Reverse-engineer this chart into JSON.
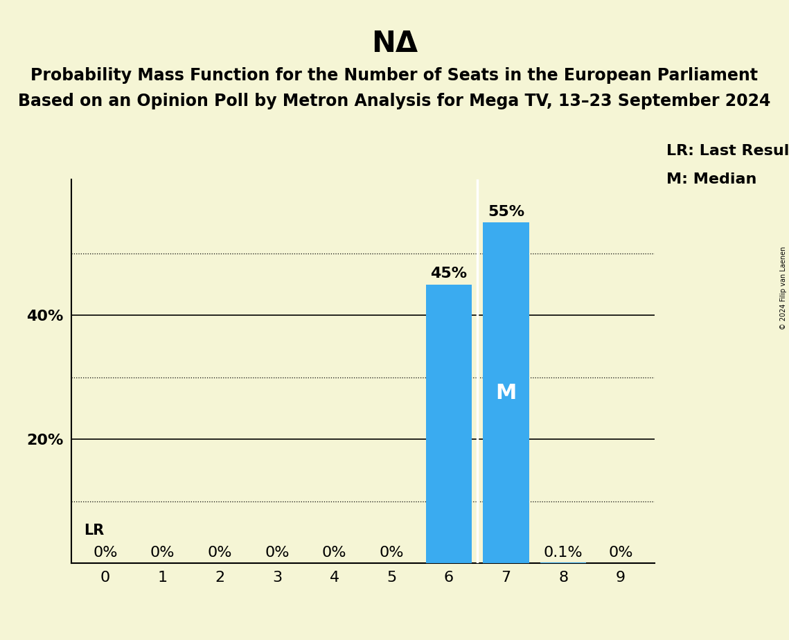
{
  "title": "NΔ",
  "subtitle1": "Probability Mass Function for the Number of Seats in the European Parliament",
  "subtitle2": "Based on an Opinion Poll by Metron Analysis for Mega TV, 13–23 September 2024",
  "copyright": "© 2024 Filip van Laenen",
  "categories": [
    0,
    1,
    2,
    3,
    4,
    5,
    6,
    7,
    8,
    9
  ],
  "values": [
    0.0,
    0.0,
    0.0,
    0.0,
    0.0,
    0.0,
    0.45,
    0.55,
    0.001,
    0.0
  ],
  "bar_labels": [
    "0%",
    "0%",
    "0%",
    "0%",
    "0%",
    "0%",
    "45%",
    "55%",
    "0.1%",
    "0%"
  ],
  "bar_color": "#3aabf0",
  "median_bar": 7,
  "lr_bar": 0,
  "median_label": "M",
  "lr_label": "LR",
  "legend_lr": "LR: Last Result",
  "legend_m": "M: Median",
  "background_color": "#f5f5d5",
  "ylim": [
    0,
    0.62
  ],
  "yticks": [
    0.0,
    0.1,
    0.2,
    0.3,
    0.4,
    0.5,
    0.6
  ],
  "solid_yticks": [
    0.0,
    0.2,
    0.4
  ],
  "dotted_yticks": [
    0.1,
    0.3,
    0.5
  ],
  "title_fontsize": 30,
  "subtitle_fontsize": 17,
  "label_fontsize": 16,
  "tick_fontsize": 16,
  "bar_label_fontsize": 16,
  "median_label_fontsize": 22,
  "lr_label_fontsize": 15,
  "legend_fontsize": 16
}
